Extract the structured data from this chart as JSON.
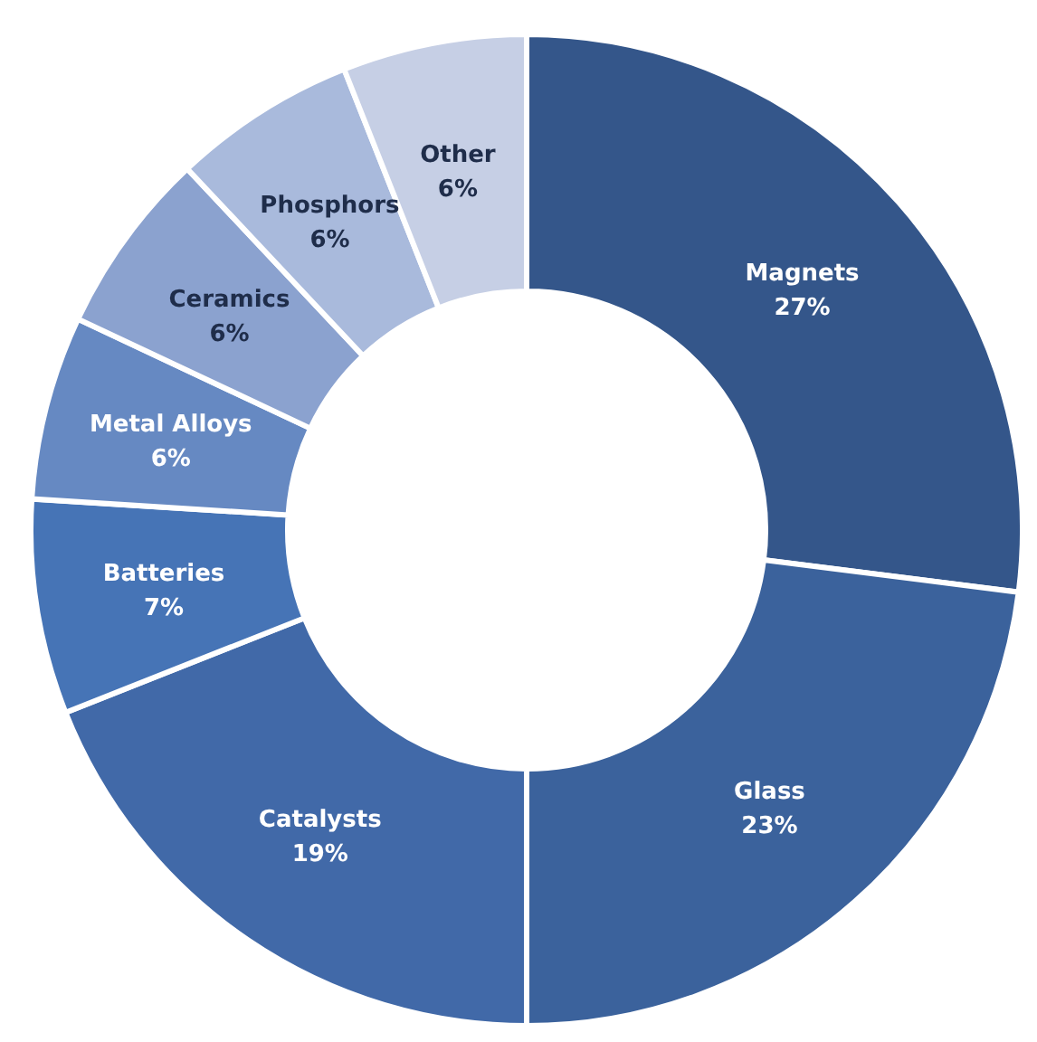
{
  "chart_data": {
    "type": "donut",
    "categories": [
      "Magnets",
      "Glass",
      "Catalysts",
      "Batteries",
      "Metal Alloys",
      "Ceramics",
      "Phosphors",
      "Other"
    ],
    "values": [
      27,
      23,
      19,
      7,
      6,
      6,
      6,
      6
    ],
    "value_labels": [
      "27%",
      "23%",
      "19%",
      "7%",
      "6%",
      "6%",
      "6%",
      "6%"
    ],
    "colors": [
      "#34568a",
      "#3b629c",
      "#4169a8",
      "#4674b6",
      "#6689c2",
      "#8ba2cf",
      "#a9badc",
      "#c6cfe5"
    ],
    "legend": false
  }
}
